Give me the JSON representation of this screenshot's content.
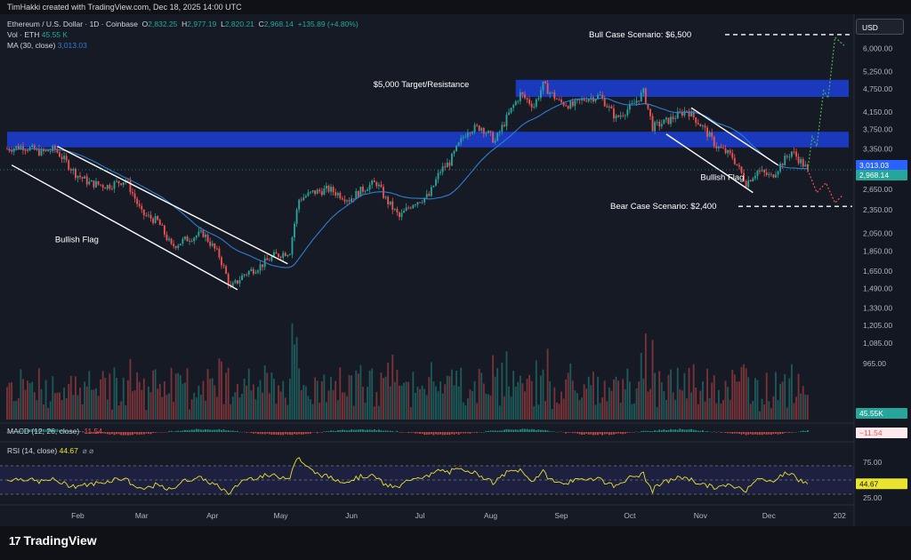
{
  "header": {
    "credit": "TimHakki created with TradingView.com, Dec 18, 2025 14:00 UTC"
  },
  "legend": {
    "symbol": "Ethereum / U.S. Dollar · 1D · Coinbase",
    "o_label": "O",
    "o": "2,832.25",
    "h_label": "H",
    "h": "2,977.19",
    "l_label": "L",
    "l": "2,820.21",
    "c_label": "C",
    "c": "2,968.14",
    "change": "+135.89 (+4.80%)",
    "vol_label": "Vol · ETH",
    "vol": "45.55 K",
    "ma_label": "MA (30, close)",
    "ma": "3,013.03"
  },
  "currency_button": "USD",
  "branding": {
    "logo_text": "TradingView",
    "logo_mark": "17"
  },
  "colors": {
    "bg": "#161a25",
    "up": "#26a69a",
    "down": "#ef5350",
    "zone": "#1c3fd8",
    "ma": "#2f7dd1",
    "rsi": "#e9e42f"
  },
  "chart_data": [
    {
      "type": "candlestick",
      "title": "",
      "xlabel": "",
      "ylabel": "",
      "y_scale": "log",
      "ylim": [
        850,
        7000
      ],
      "y_ticks": [
        "6,000.00",
        "5,250.00",
        "4,750.00",
        "4,150.00",
        "3,750.00",
        "3,350.00",
        "2,650.00",
        "2,350.00",
        "2,050.00",
        "1,850.00",
        "1,650.00",
        "1,490.00",
        "1,330.00",
        "1,205.00",
        "1,085.00",
        "965.00"
      ],
      "y_tick_values": [
        6000,
        5250,
        4750,
        4150,
        3750,
        3350,
        2650,
        2350,
        2050,
        1850,
        1650,
        1490,
        1330,
        1205,
        1085,
        965
      ],
      "x_ticks": [
        "Feb",
        "Mar",
        "Apr",
        "May",
        "Jun",
        "Jul",
        "Aug",
        "Sep",
        "Oct",
        "Nov",
        "Dec",
        "202"
      ],
      "x_tick_dates": [
        "2025-02-01",
        "2025-03-01",
        "2025-04-01",
        "2025-05-01",
        "2025-06-01",
        "2025-07-01",
        "2025-08-01",
        "2025-09-01",
        "2025-10-01",
        "2025-11-01",
        "2025-12-01",
        "2026-01-01"
      ],
      "x_range": [
        "2025-01-01",
        "2026-01-05"
      ],
      "price_path": [
        [
          "2025-01-01",
          3350
        ],
        [
          "2025-01-08",
          3400
        ],
        [
          "2025-01-16",
          3280
        ],
        [
          "2025-01-22",
          3340
        ],
        [
          "2025-01-31",
          2900
        ],
        [
          "2025-02-06",
          2750
        ],
        [
          "2025-02-14",
          2700
        ],
        [
          "2025-02-22",
          2800
        ],
        [
          "2025-03-01",
          2300
        ],
        [
          "2025-03-08",
          2200
        ],
        [
          "2025-03-14",
          1900
        ],
        [
          "2025-03-22",
          2000
        ],
        [
          "2025-03-28",
          2050
        ],
        [
          "2025-04-04",
          1800
        ],
        [
          "2025-04-09",
          1490
        ],
        [
          "2025-04-15",
          1620
        ],
        [
          "2025-04-22",
          1700
        ],
        [
          "2025-04-28",
          1800
        ],
        [
          "2025-05-05",
          1850
        ],
        [
          "2025-05-09",
          2500
        ],
        [
          "2025-05-15",
          2600
        ],
        [
          "2025-05-22",
          2650
        ],
        [
          "2025-05-31",
          2500
        ],
        [
          "2025-06-08",
          2700
        ],
        [
          "2025-06-12",
          2750
        ],
        [
          "2025-06-16",
          2500
        ],
        [
          "2025-06-22",
          2250
        ],
        [
          "2025-06-28",
          2450
        ],
        [
          "2025-07-05",
          2550
        ],
        [
          "2025-07-10",
          2950
        ],
        [
          "2025-07-14",
          3100
        ],
        [
          "2025-07-22",
          3750
        ],
        [
          "2025-07-28",
          3800
        ],
        [
          "2025-08-03",
          3500
        ],
        [
          "2025-08-08",
          4000
        ],
        [
          "2025-08-14",
          4600
        ],
        [
          "2025-08-20",
          4300
        ],
        [
          "2025-08-24",
          4850
        ],
        [
          "2025-08-31",
          4400
        ],
        [
          "2025-09-06",
          4300
        ],
        [
          "2025-09-12",
          4500
        ],
        [
          "2025-09-18",
          4550
        ],
        [
          "2025-09-25",
          4000
        ],
        [
          "2025-10-02",
          4300
        ],
        [
          "2025-10-07",
          4650
        ],
        [
          "2025-10-11",
          3800
        ],
        [
          "2025-10-18",
          3950
        ],
        [
          "2025-10-26",
          4200
        ],
        [
          "2025-11-02",
          3800
        ],
        [
          "2025-11-08",
          3400
        ],
        [
          "2025-11-15",
          3200
        ],
        [
          "2025-11-21",
          2750
        ],
        [
          "2025-11-26",
          2950
        ],
        [
          "2025-12-02",
          2850
        ],
        [
          "2025-12-07",
          3100
        ],
        [
          "2025-12-11",
          3300
        ],
        [
          "2025-12-18",
          2968
        ]
      ],
      "ma_30": {
        "name": "MA (30, close)",
        "last": 3013.03
      },
      "last_close": 2968.14,
      "price_labels": [
        "3,013.03",
        "2,968.14"
      ],
      "zones": [
        {
          "label": "$5,000 Target/Resistance",
          "low": 4530,
          "high": 5000,
          "from": "2025-08-12",
          "to": "2026-01-05"
        },
        {
          "label": "",
          "low": 3380,
          "high": 3700,
          "from": "2025-01-01",
          "to": "2026-01-05"
        }
      ],
      "annotations": [
        {
          "text": "Bull Case Scenario: $6,500",
          "price": 6500
        },
        {
          "text": "Bear Case Scenario: $2,400",
          "price": 2400
        },
        {
          "text": "Bullish Flag",
          "date": "2025-01-22",
          "price": 1950
        },
        {
          "text": "Bullish Flag",
          "date": "2025-11-01",
          "price": 2800
        }
      ],
      "flags": [
        {
          "upper": [
            [
              "2025-01-23",
              3400
            ],
            [
              "2025-05-04",
              1720
            ]
          ],
          "lower": [
            [
              "2025-01-03",
              3050
            ],
            [
              "2025-04-12",
              1480
            ]
          ]
        },
        {
          "upper": [
            [
              "2025-10-28",
              4250
            ],
            [
              "2025-12-05",
              3050
            ]
          ],
          "lower": [
            [
              "2025-10-17",
              3650
            ],
            [
              "2025-11-24",
              2600
            ]
          ]
        }
      ],
      "projections": [
        {
          "direction": "bull",
          "points": [
            [
              "2025-12-18",
              2968
            ],
            [
              "2025-12-20",
              3600
            ],
            [
              "2025-12-22",
              3400
            ],
            [
              "2025-12-25",
              4700
            ],
            [
              "2025-12-27",
              4500
            ],
            [
              "2025-12-30",
              6400
            ],
            [
              "2026-01-03",
              6100
            ]
          ]
        },
        {
          "direction": "bear",
          "points": [
            [
              "2025-12-18",
              2968
            ],
            [
              "2025-12-22",
              2600
            ],
            [
              "2025-12-26",
              2750
            ],
            [
              "2025-12-30",
              2450
            ],
            [
              "2026-01-02",
              2550
            ]
          ]
        }
      ]
    },
    {
      "type": "bar",
      "title": "Vol · ETH",
      "last_value": "45.55 K",
      "value_label": "45.55K"
    },
    {
      "type": "histogram",
      "title": "MACD (12, 26, close)",
      "last_value": "-11.54",
      "value_label": "−11.54"
    },
    {
      "type": "line",
      "title": "RSI (14, close)",
      "last_value": "44.67",
      "ylim": [
        15,
        85
      ],
      "y_ticks": [
        "75.00",
        "25.00"
      ],
      "y_tick_values": [
        75,
        25
      ],
      "upper_band": 70,
      "mid": 50,
      "lower_band": 30,
      "value_label": "44.67"
    }
  ]
}
